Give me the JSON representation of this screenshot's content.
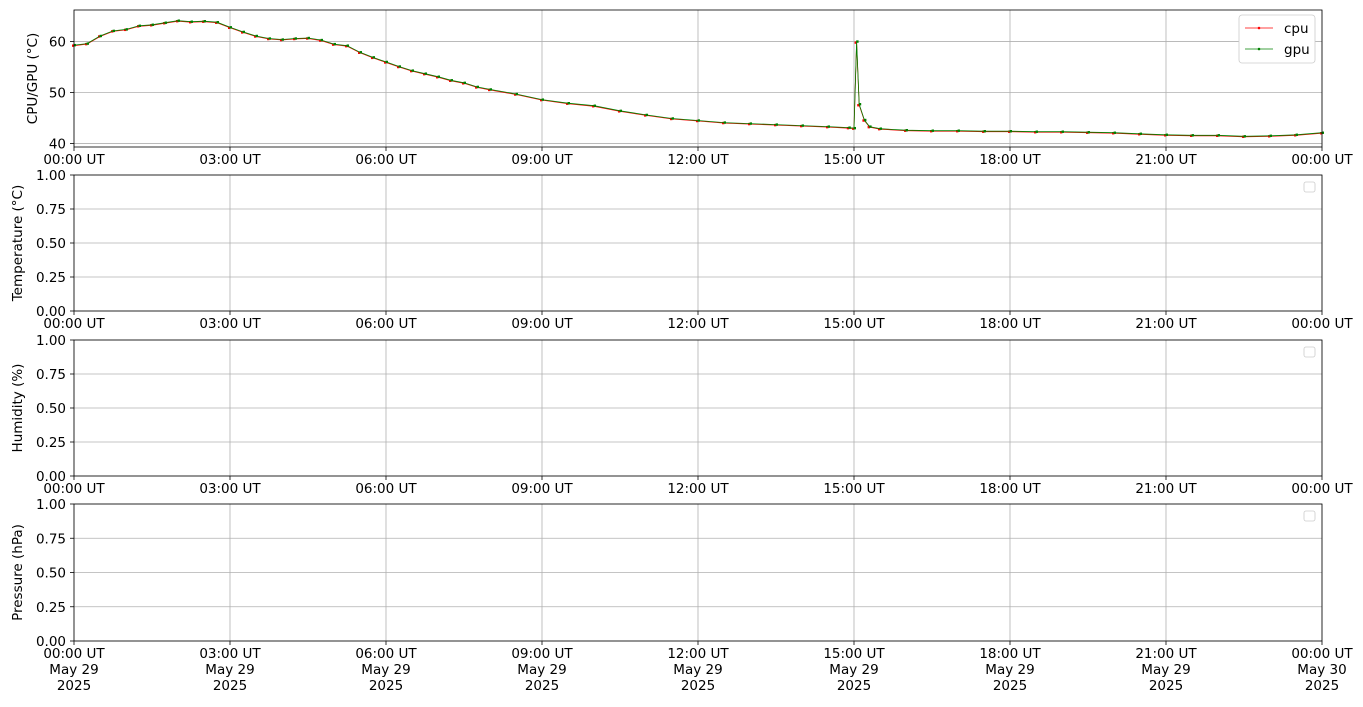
{
  "chart_data": [
    {
      "type": "line",
      "ylabel": "CPU/GPU (°C)",
      "ylim": [
        39.3,
        66.2
      ],
      "yticks": [
        40,
        50,
        60
      ],
      "xlim": [
        "2025-05-29T00:00",
        "2025-05-30T00:00"
      ],
      "xtick_labels": [
        "00:00 UT",
        "03:00 UT",
        "06:00 UT",
        "09:00 UT",
        "12:00 UT",
        "15:00 UT",
        "18:00 UT",
        "21:00 UT",
        "00:00 UT"
      ],
      "grid": true,
      "legend": "top-right",
      "x_hours": [
        0,
        0.25,
        0.5,
        0.75,
        1,
        1.25,
        1.5,
        1.75,
        2,
        2.25,
        2.5,
        2.75,
        3,
        3.25,
        3.5,
        3.75,
        4,
        4.25,
        4.5,
        4.75,
        5,
        5.25,
        5.5,
        5.75,
        6,
        6.25,
        6.5,
        6.75,
        7,
        7.25,
        7.5,
        7.75,
        8,
        8.5,
        9,
        9.5,
        10,
        10.5,
        11,
        11.5,
        12,
        12.5,
        13,
        13.5,
        14,
        14.5,
        14.9,
        15.0,
        15.05,
        15.1,
        15.2,
        15.3,
        15.5,
        16,
        16.5,
        17,
        17.5,
        18,
        18.5,
        19,
        19.5,
        20,
        20.5,
        21,
        21.5,
        22,
        22.5,
        23,
        23.5,
        24
      ],
      "series": [
        {
          "name": "cpu",
          "color": "#ff0000",
          "values": [
            59.2,
            59.5,
            61.0,
            62.0,
            62.3,
            63.0,
            63.2,
            63.6,
            64.0,
            63.8,
            63.9,
            63.7,
            62.7,
            61.8,
            61.0,
            60.5,
            60.3,
            60.5,
            60.6,
            60.2,
            59.4,
            59.1,
            57.8,
            56.8,
            55.9,
            55.0,
            54.2,
            53.6,
            53.0,
            52.3,
            51.8,
            51.0,
            50.5,
            49.6,
            48.5,
            47.8,
            47.3,
            46.3,
            45.5,
            44.8,
            44.4,
            44.0,
            43.8,
            43.6,
            43.4,
            43.2,
            43.0,
            42.9,
            59.8,
            47.5,
            44.5,
            43.2,
            42.8,
            42.5,
            42.4,
            42.4,
            42.3,
            42.3,
            42.2,
            42.2,
            42.1,
            42.0,
            41.8,
            41.6,
            41.5,
            41.5,
            41.3,
            41.4,
            41.6,
            42.0
          ]
        },
        {
          "name": "gpu",
          "color": "#008000",
          "values": [
            59.3,
            59.6,
            61.1,
            62.1,
            62.4,
            63.1,
            63.3,
            63.7,
            64.1,
            63.9,
            64.0,
            63.8,
            62.8,
            61.9,
            61.1,
            60.6,
            60.4,
            60.6,
            60.7,
            60.3,
            59.5,
            59.2,
            57.9,
            56.9,
            56.0,
            55.1,
            54.3,
            53.7,
            53.1,
            52.4,
            51.9,
            51.1,
            50.6,
            49.7,
            48.6,
            47.9,
            47.4,
            46.4,
            45.6,
            44.9,
            44.5,
            44.1,
            43.9,
            43.7,
            43.5,
            43.3,
            43.1,
            43.0,
            60.0,
            47.7,
            44.6,
            43.3,
            42.9,
            42.6,
            42.5,
            42.5,
            42.4,
            42.4,
            42.3,
            42.3,
            42.2,
            42.1,
            41.9,
            41.7,
            41.6,
            41.6,
            41.4,
            41.5,
            41.7,
            42.1
          ]
        }
      ]
    },
    {
      "type": "line",
      "ylabel": "Temperature (°C)",
      "ylim": [
        0,
        1
      ],
      "yticks": [
        0,
        0.25,
        0.5,
        0.75,
        1
      ],
      "ytick_labels": [
        "0.00",
        "0.25",
        "0.50",
        "0.75",
        "1.00"
      ],
      "xtick_labels": [
        "00:00 UT",
        "03:00 UT",
        "06:00 UT",
        "09:00 UT",
        "12:00 UT",
        "15:00 UT",
        "18:00 UT",
        "21:00 UT",
        "00:00 UT"
      ],
      "grid": true,
      "legend": "top-right (empty)",
      "series": []
    },
    {
      "type": "line",
      "ylabel": "Humidity (%)",
      "ylim": [
        0,
        1
      ],
      "yticks": [
        0,
        0.25,
        0.5,
        0.75,
        1
      ],
      "ytick_labels": [
        "0.00",
        "0.25",
        "0.50",
        "0.75",
        "1.00"
      ],
      "xtick_labels": [
        "00:00 UT",
        "03:00 UT",
        "06:00 UT",
        "09:00 UT",
        "12:00 UT",
        "15:00 UT",
        "18:00 UT",
        "21:00 UT",
        "00:00 UT"
      ],
      "grid": true,
      "legend": "top-right (empty)",
      "series": []
    },
    {
      "type": "line",
      "ylabel": "Pressure (hPa)",
      "ylim": [
        0,
        1
      ],
      "yticks": [
        0,
        0.25,
        0.5,
        0.75,
        1
      ],
      "ytick_labels": [
        "0.00",
        "0.25",
        "0.50",
        "0.75",
        "1.00"
      ],
      "xtick_labels": [
        [
          "00:00 UT",
          "May 29",
          "2025"
        ],
        [
          "03:00 UT",
          "May 29",
          "2025"
        ],
        [
          "06:00 UT",
          "May 29",
          "2025"
        ],
        [
          "09:00 UT",
          "May 29",
          "2025"
        ],
        [
          "12:00 UT",
          "May 29",
          "2025"
        ],
        [
          "15:00 UT",
          "May 29",
          "2025"
        ],
        [
          "18:00 UT",
          "May 29",
          "2025"
        ],
        [
          "21:00 UT",
          "May 29",
          "2025"
        ],
        [
          "00:00 UT",
          "May 30",
          "2025"
        ]
      ],
      "grid": true,
      "legend": "top-right (empty)",
      "series": []
    }
  ]
}
